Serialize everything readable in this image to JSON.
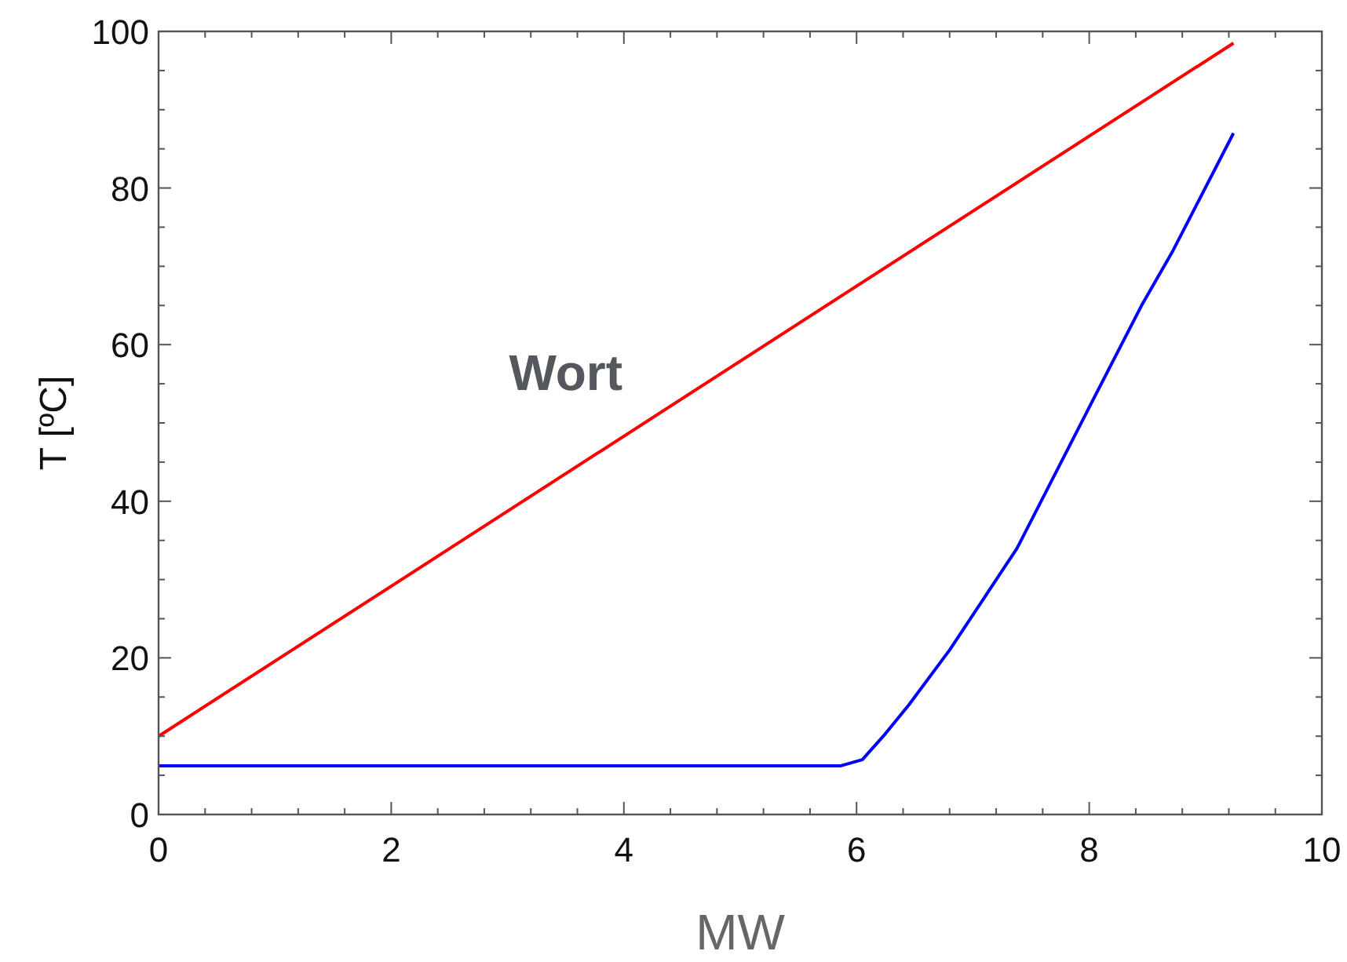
{
  "chart_data": {
    "type": "line",
    "xlabel": "MW",
    "ylabel": "T [ºC]",
    "annotations": [
      "Wort"
    ],
    "xlim": [
      0,
      10
    ],
    "ylim": [
      0,
      100
    ],
    "xticks": [
      0,
      {
        "value": 0.4,
        "label": null
      },
      {
        "value": 0.8,
        "label": null
      },
      {
        "value": 1.2,
        "label": null
      },
      {
        "value": 1.6,
        "label": null
      },
      2,
      {
        "value": 2.4,
        "label": null
      },
      {
        "value": 2.8,
        "label": null
      },
      {
        "value": 3.2,
        "label": null
      },
      {
        "value": 3.6,
        "label": null
      },
      4,
      {
        "value": 4.4,
        "label": null
      },
      {
        "value": 4.8,
        "label": null
      },
      {
        "value": 5.2,
        "label": null
      },
      {
        "value": 5.6,
        "label": null
      },
      6,
      {
        "value": 6.4,
        "label": null
      },
      {
        "value": 6.8,
        "label": null
      },
      {
        "value": 7.2,
        "label": null
      },
      {
        "value": 7.6,
        "label": null
      },
      8,
      {
        "value": 8.4,
        "label": null
      },
      {
        "value": 8.8,
        "label": null
      },
      {
        "value": 9.2,
        "label": null
      },
      {
        "value": 9.6,
        "label": null
      },
      10
    ],
    "yticks": [
      0,
      {
        "value": 5,
        "label": null
      },
      {
        "value": 10,
        "label": null
      },
      {
        "value": 15,
        "label": null
      },
      20,
      {
        "value": 25,
        "label": null
      },
      {
        "value": 30,
        "label": null
      },
      {
        "value": 35,
        "label": null
      },
      40,
      {
        "value": 45,
        "label": null
      },
      {
        "value": 50,
        "label": null
      },
      {
        "value": 55,
        "label": null
      },
      60,
      {
        "value": 65,
        "label": null
      },
      {
        "value": 70,
        "label": null
      },
      {
        "value": 75,
        "label": null
      },
      80,
      {
        "value": 85,
        "label": null
      },
      {
        "value": 90,
        "label": null
      },
      {
        "value": 95,
        "label": null
      },
      100
    ],
    "grid": false,
    "marker": "none",
    "line_style": "solid",
    "series": [
      {
        "color": "#ff0000",
        "x": [
          0,
          9.24
        ],
        "values": [
          10,
          98.5
        ]
      },
      {
        "color": "#0000ff",
        "x": [
          0,
          5.86,
          6.05,
          6.23,
          6.45,
          6.8,
          7.38,
          8.0,
          8.45,
          8.72,
          9.24
        ],
        "values": [
          6.2,
          6.2,
          7,
          10,
          14,
          21,
          34,
          52,
          65,
          72,
          87
        ]
      }
    ]
  }
}
